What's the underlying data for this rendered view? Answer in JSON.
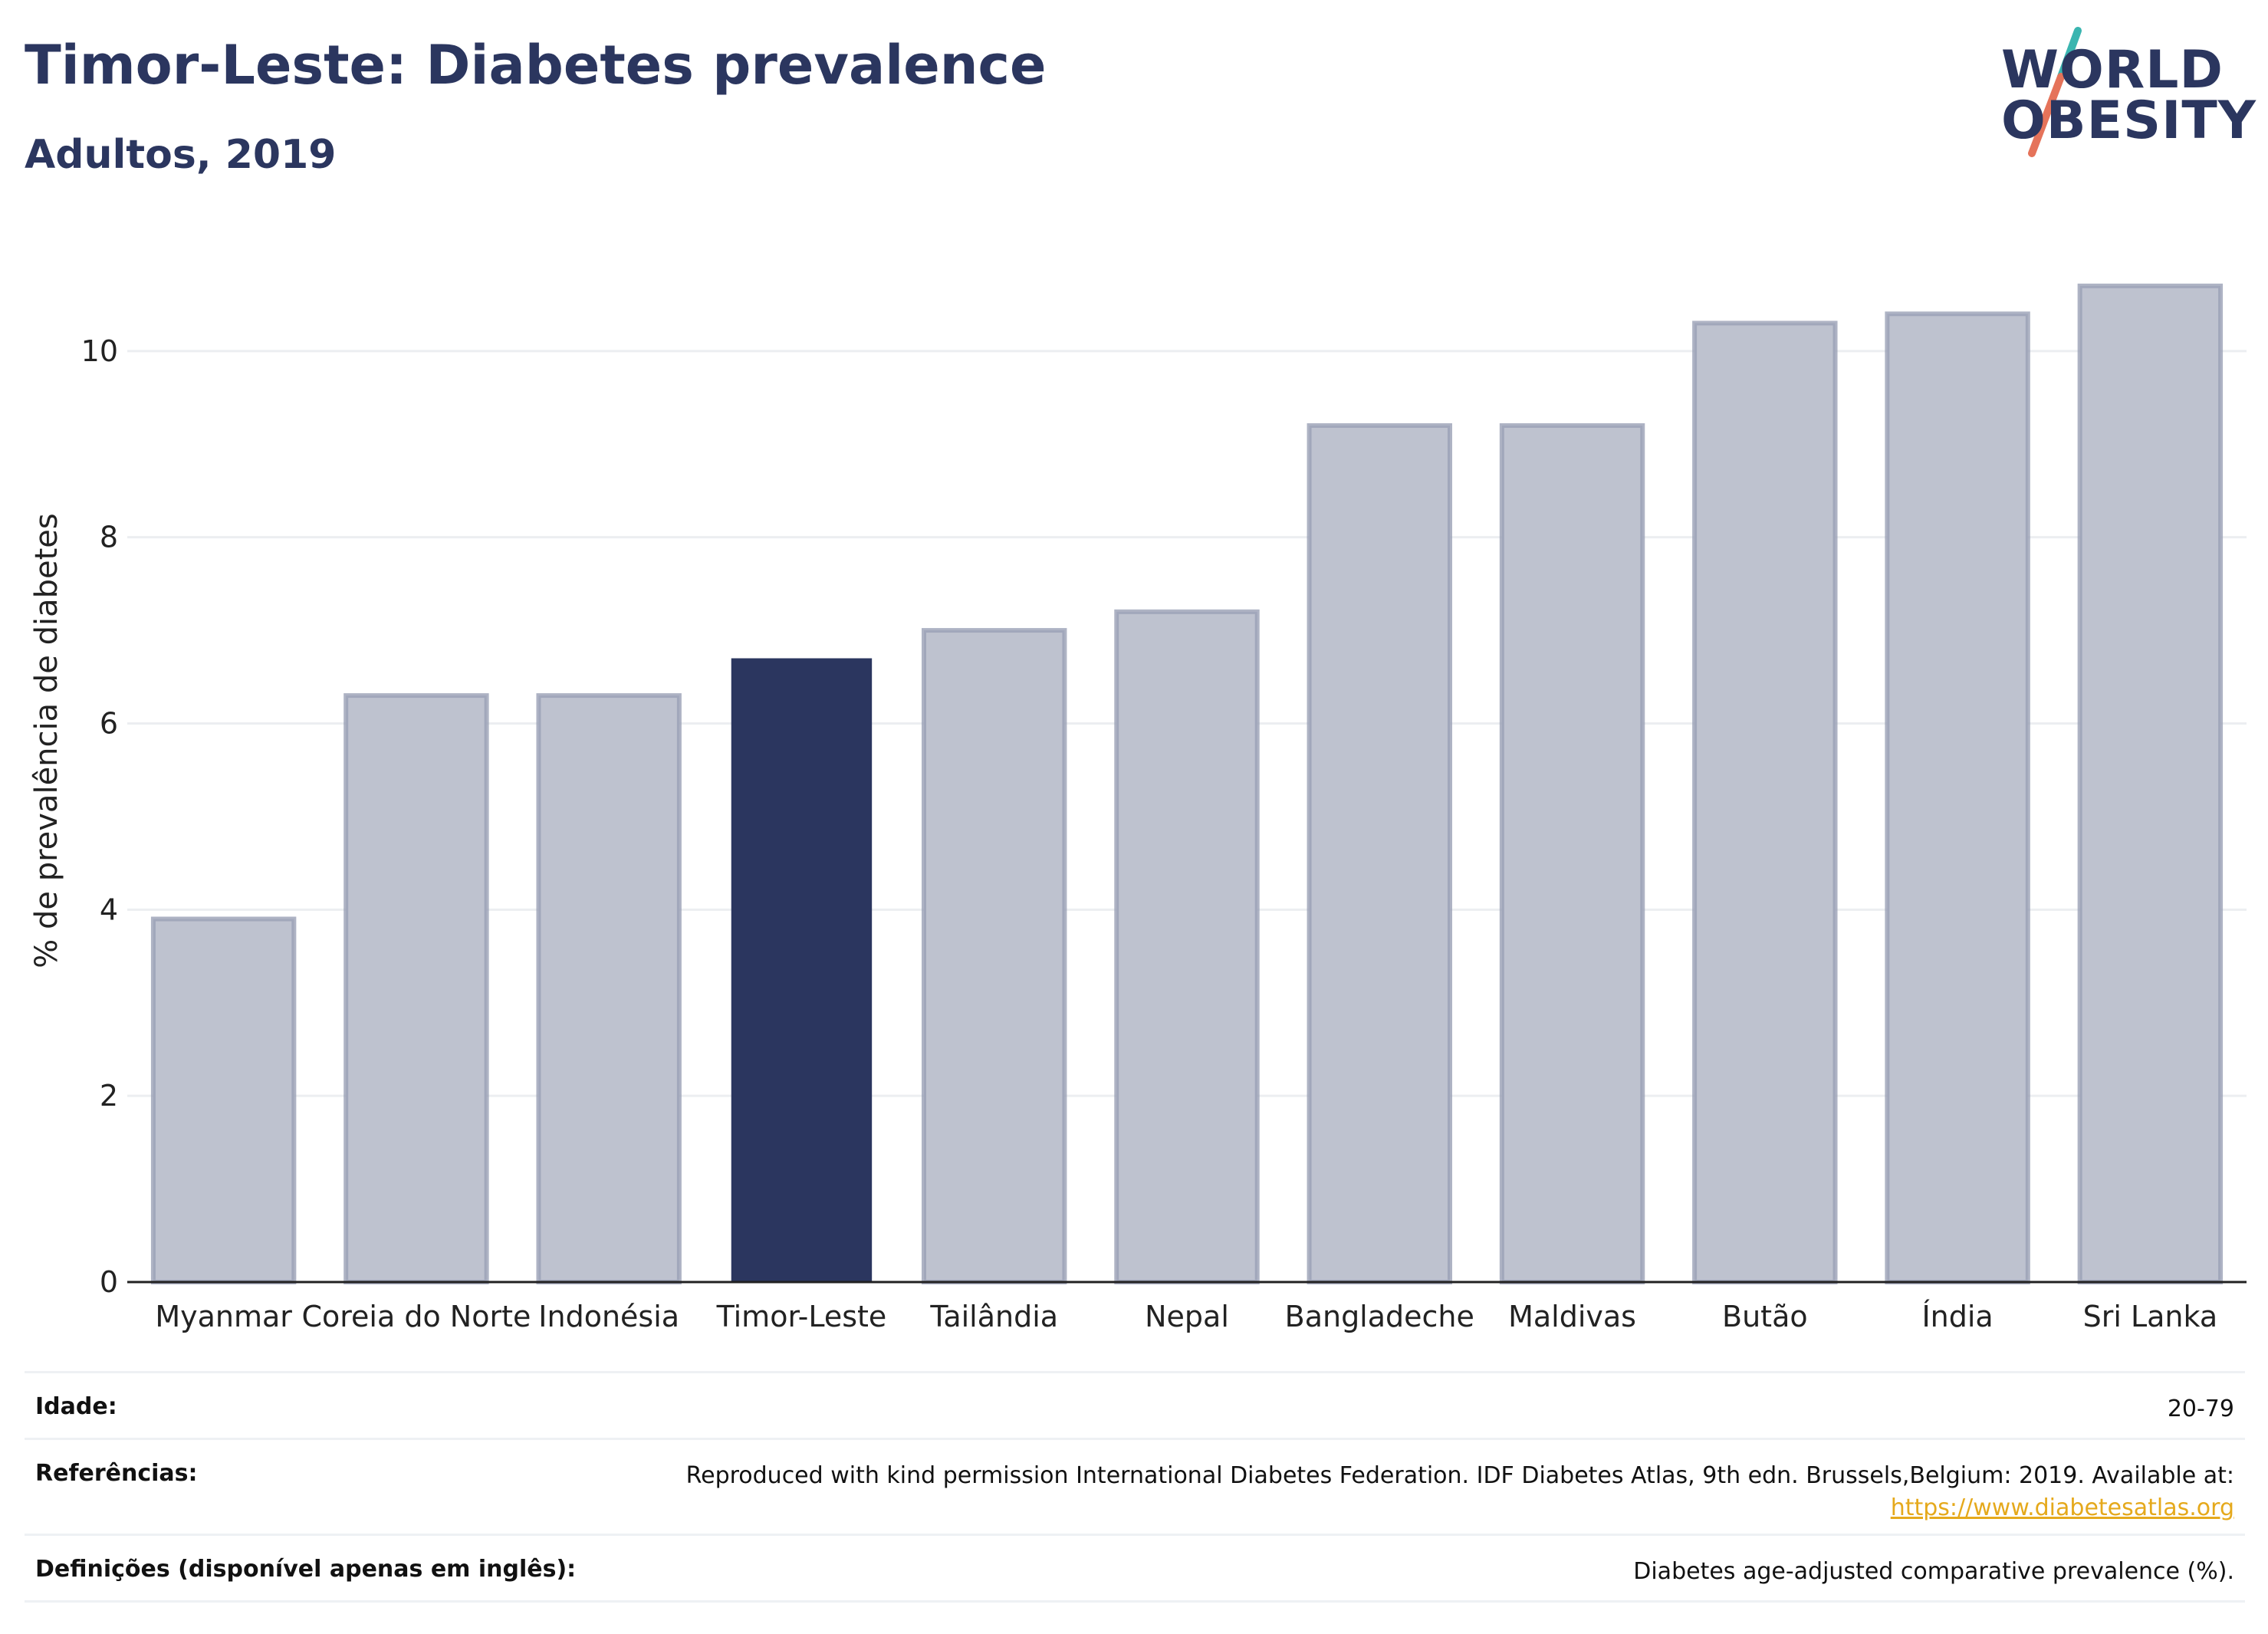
{
  "header": {
    "title": "Timor-Leste: Diabetes prevalence",
    "subtitle": "Adultos, 2019"
  },
  "logo": {
    "line1": "WORLD",
    "line2": "OBESITY"
  },
  "colors": {
    "brand_navy": "#2b365f",
    "bar_default": "#bec2cf",
    "bar_default_border": "#9aa0b5",
    "bar_highlight": "#2b365f",
    "logo_slash_teal": "#3ab5b0",
    "logo_slash_coral": "#e5735a",
    "link": "#e5a91c"
  },
  "chart_data": {
    "type": "bar",
    "title": "Timor-Leste: Diabetes prevalence",
    "subtitle": "Adultos, 2019",
    "xlabel": "",
    "ylabel": "% de prevalência de diabetes",
    "categories": [
      "Myanmar",
      "Coreia do Norte",
      "Indonésia",
      "Timor-Leste",
      "Tailândia",
      "Nepal",
      "Bangladeche",
      "Maldivas",
      "Butão",
      "Índia",
      "Sri Lanka"
    ],
    "values": [
      3.9,
      6.3,
      6.3,
      6.7,
      7.0,
      7.2,
      9.2,
      9.2,
      10.3,
      10.4,
      10.7
    ],
    "highlight": "Timor-Leste",
    "ylim": [
      0,
      11.3
    ],
    "yticks": [
      0,
      2,
      4,
      6,
      8,
      10
    ],
    "grid": true,
    "legend": "none"
  },
  "info": {
    "rows": [
      {
        "label": "Idade:",
        "value": "20-79"
      },
      {
        "label": "Referências:",
        "value": "Reproduced with kind permission International Diabetes Federation. IDF Diabetes Atlas, 9th edn. Brussels,Belgium: 2019. Available at:",
        "link": "https://www.diabetesatlas.org"
      },
      {
        "label": "Definições (disponível apenas em inglês):",
        "value": "Diabetes age-adjusted comparative prevalence (%)."
      }
    ]
  }
}
